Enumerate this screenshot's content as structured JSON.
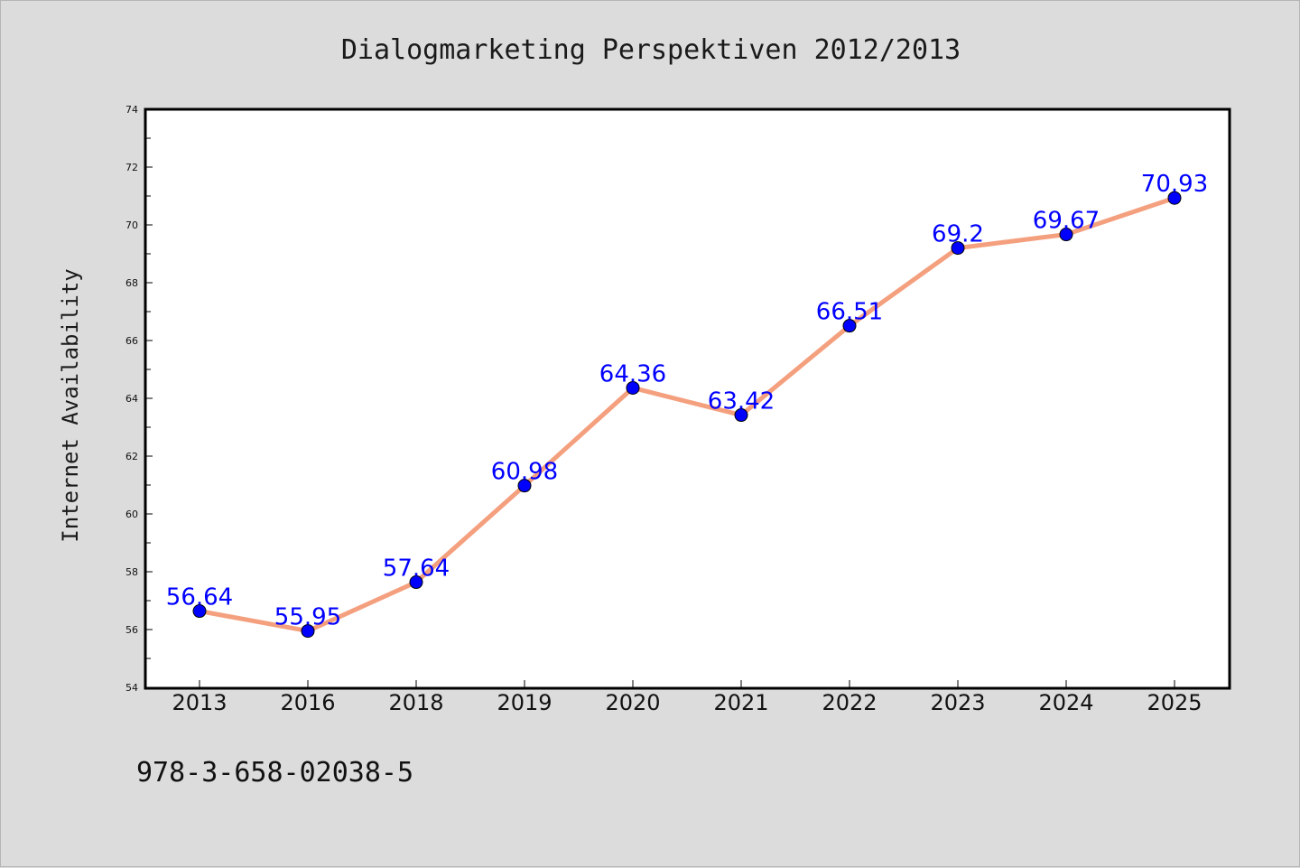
{
  "title": "Dialogmarketing Perspektiven 2012/2013",
  "footer": "978-3-658-02038-5",
  "colors": {
    "background": "#dcdcdc",
    "plot_area": "#ffffff",
    "line": "#f4a07e",
    "marker": "#0000ff",
    "label": "#0000ff"
  },
  "chart_data": {
    "type": "line",
    "categories": [
      "2013",
      "2016",
      "2018",
      "2019",
      "2020",
      "2021",
      "2022",
      "2023",
      "2024",
      "2025"
    ],
    "series": [
      {
        "values": [
          56.64,
          55.95,
          57.64,
          60.98,
          64.36,
          63.42,
          66.51,
          69.2,
          69.67,
          70.93
        ]
      }
    ],
    "data_labels": [
      "56.64",
      "55.95",
      "57.64",
      "60.98",
      "64.36",
      "63.42",
      "66.51",
      "69.2",
      "69.67",
      "70.93"
    ],
    "xlabel": "",
    "ylabel": "Internet Availability",
    "ylim": [
      54,
      74
    ],
    "yticks": [
      "54",
      "56",
      "58",
      "60",
      "62",
      "64",
      "66",
      "68",
      "70",
      "72",
      "74"
    ],
    "grid": false,
    "legend": "none"
  }
}
